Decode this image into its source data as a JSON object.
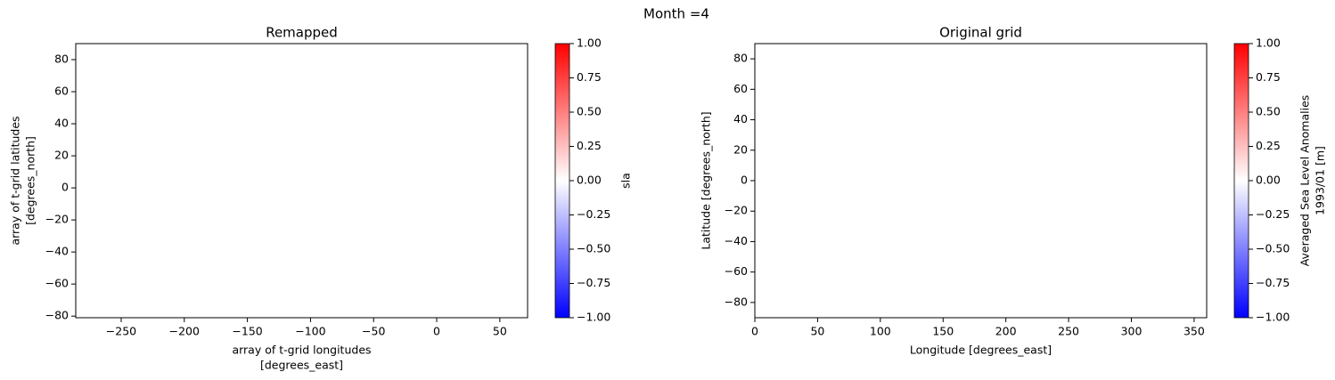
{
  "title": "Month =4",
  "chart_data": [
    {
      "type": "heatmap",
      "title": "Remapped",
      "xlabel": [
        "array of t-grid longitudes",
        "[degrees_east]"
      ],
      "ylabel": [
        "array of t-grid latitudes",
        "[degrees_north]"
      ],
      "xlim": [
        -286,
        72
      ],
      "ylim": [
        -81,
        90
      ],
      "xticks": [
        {
          "value": -250,
          "label": "−250"
        },
        {
          "value": -200,
          "label": "−200"
        },
        {
          "value": -150,
          "label": "−150"
        },
        {
          "value": -100,
          "label": "−100"
        },
        {
          "value": -50,
          "label": "−50"
        },
        0,
        50
      ],
      "yticks": [
        {
          "value": -80,
          "label": "−80"
        },
        {
          "value": -60,
          "label": "−60"
        },
        {
          "value": -40,
          "label": "−40"
        },
        {
          "value": -20,
          "label": "−20"
        },
        0,
        20,
        40,
        60,
        80
      ],
      "colorbar": {
        "label": [
          "sla"
        ],
        "lim": [
          -1,
          1
        ],
        "colors": [
          "#0000ff",
          "#ffffff",
          "#ff0000"
        ],
        "ticks": [
          {
            "value": -1,
            "label": "−1.00"
          },
          {
            "value": -0.75,
            "label": "−0.75"
          },
          {
            "value": -0.5,
            "label": "−0.50"
          },
          {
            "value": -0.25,
            "label": "−0.25"
          },
          {
            "value": 0,
            "label": "0.00"
          },
          {
            "value": 0.25,
            "label": "0.25"
          },
          {
            "value": 0.5,
            "label": "0.50"
          },
          {
            "value": 0.75,
            "label": "0.75"
          },
          {
            "value": 1,
            "label": "1.00"
          }
        ]
      }
    },
    {
      "type": "heatmap",
      "title": "Original grid",
      "xlabel": [
        "Longitude [degrees_east]"
      ],
      "ylabel": [
        "Latitude [degrees_north]"
      ],
      "xlim": [
        0,
        360
      ],
      "ylim": [
        -90,
        90
      ],
      "xticks": [
        0,
        50,
        100,
        150,
        200,
        250,
        300,
        350
      ],
      "yticks": [
        {
          "value": -80,
          "label": "−80"
        },
        {
          "value": -60,
          "label": "−60"
        },
        {
          "value": -40,
          "label": "−40"
        },
        {
          "value": -20,
          "label": "−20"
        },
        0,
        20,
        40,
        60,
        80
      ],
      "colorbar": {
        "label": [
          "Averaged Sea Level Anomalies",
          "1993/01 [m]"
        ],
        "lim": [
          -1,
          1
        ],
        "colors": [
          "#0000ff",
          "#ffffff",
          "#ff0000"
        ],
        "ticks": [
          {
            "value": -1,
            "label": "−1.00"
          },
          {
            "value": -0.75,
            "label": "−0.75"
          },
          {
            "value": -0.5,
            "label": "−0.50"
          },
          {
            "value": -0.25,
            "label": "−0.25"
          },
          {
            "value": 0,
            "label": "0.00"
          },
          {
            "value": 0.25,
            "label": "0.25"
          },
          {
            "value": 0.5,
            "label": "0.50"
          },
          {
            "value": 0.75,
            "label": "0.75"
          },
          {
            "value": 1,
            "label": "1.00"
          }
        ]
      }
    }
  ]
}
